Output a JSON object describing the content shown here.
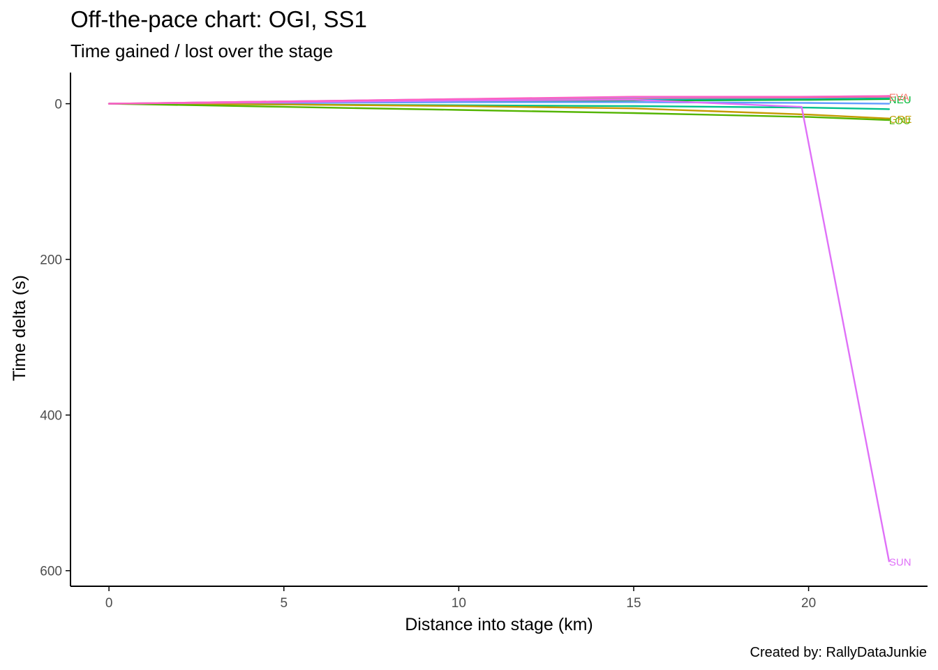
{
  "chart_data": {
    "type": "line",
    "title": "Off-the-pace chart: OGI, SS1",
    "subtitle": "Time gained / lost over the stage",
    "xlabel": "Distance into stage (km)",
    "ylabel": "Time delta (s)",
    "caption": "Created by: RallyDataJunkie",
    "xlim": [
      -1.1,
      23.4
    ],
    "ylim": [
      620,
      -40
    ],
    "y_reversed": true,
    "x_ticks": [
      0,
      5,
      10,
      15,
      20
    ],
    "y_ticks": [
      0,
      200,
      400,
      600
    ],
    "grid": false,
    "legend": "none; series labelled at line ends",
    "series": [
      {
        "name": "NEU",
        "color": "#00BA38",
        "x": [
          0,
          5,
          10,
          15,
          20,
          22.3
        ],
        "y": [
          0,
          -1.5,
          -3,
          -4,
          -5,
          -6
        ]
      },
      {
        "name": "",
        "color": "#00B6EB",
        "x": [
          0,
          5,
          10,
          15,
          20,
          22.3
        ],
        "y": [
          0,
          -2,
          -4,
          -6,
          -7,
          -8
        ]
      },
      {
        "name": "",
        "color": "#619CFF",
        "x": [
          0,
          5,
          10,
          15,
          20,
          22.3
        ],
        "y": [
          0,
          -1,
          -2,
          -2,
          -1,
          0
        ]
      },
      {
        "name": "",
        "color": "#00C08B",
        "x": [
          0,
          5,
          10,
          15,
          20,
          22.3
        ],
        "y": [
          0,
          1,
          2,
          3,
          5,
          7
        ]
      },
      {
        "name": "EVA",
        "color": "#F8766D",
        "x": [
          0,
          5,
          10,
          15,
          20,
          22.3
        ],
        "y": [
          0,
          -3,
          -5,
          -7,
          -8,
          -9
        ]
      },
      {
        "name": "GRE",
        "color": "#C49A00",
        "x": [
          0,
          5,
          10,
          15,
          20,
          22.3
        ],
        "y": [
          0,
          1,
          3,
          6,
          14,
          19
        ]
      },
      {
        "name": "LOU",
        "color": "#53B400",
        "x": [
          0,
          5,
          10,
          15,
          20,
          22.3
        ],
        "y": [
          0,
          4,
          8,
          12,
          17,
          21
        ]
      },
      {
        "name": "",
        "color": "#A58AFF",
        "x": [
          0,
          5,
          10,
          15,
          20,
          22.3
        ],
        "y": [
          0,
          -3,
          -6,
          -8,
          -9,
          -10
        ]
      },
      {
        "name": "SUN",
        "color": "#DF70F8",
        "x": [
          0,
          5,
          10,
          15,
          19.8,
          22.3
        ],
        "y": [
          0,
          -2,
          -4,
          -5,
          4,
          588
        ]
      },
      {
        "name": "",
        "color": "#FF61C3",
        "x": [
          0,
          5,
          10,
          15,
          20,
          22.3
        ],
        "y": [
          0,
          -3,
          -6,
          -9,
          -9,
          -10
        ]
      }
    ]
  }
}
